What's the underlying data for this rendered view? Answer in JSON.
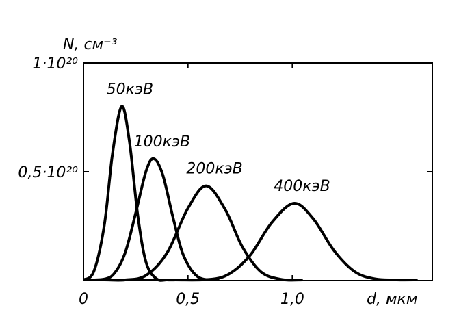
{
  "chart_data": {
    "type": "line",
    "y_label": "N, см⁻³",
    "x_label": "d, мкм",
    "xlim": [
      0,
      1.67
    ],
    "ylim": [
      0,
      1e+20
    ],
    "xticks": [
      0,
      {
        "value": 0.5,
        "label": "0,5"
      },
      {
        "value": 1.0,
        "label": "1,0"
      }
    ],
    "yticks": [
      {
        "value": 5e+19,
        "label": "0,5·10²⁰"
      },
      {
        "value": 1e+20,
        "label": "1·10²⁰"
      }
    ],
    "color": "#000000",
    "series": [
      {
        "name": "50кэВ",
        "x": [
          0,
          0.05,
          0.1,
          0.14,
          0.183,
          0.22,
          0.26,
          0.3,
          0.35,
          0.4,
          0.45
        ],
        "values": [
          0,
          4.3e+18,
          2.56e+19,
          5.9e+19,
          8e+19,
          6.4e+19,
          3e+19,
          8.3e+18,
          8e+17,
          0,
          0
        ]
      },
      {
        "name": "100кэВ",
        "x": [
          0,
          0.1,
          0.15,
          0.2,
          0.25,
          0.3,
          0.337,
          0.38,
          0.43,
          0.48,
          0.55,
          0.65
        ],
        "values": [
          0,
          7e+17,
          3.6e+18,
          1.29e+19,
          3.1e+19,
          5.04e+19,
          5.6e+19,
          4.85e+19,
          2.85e+19,
          1.13e+19,
          1.6e+18,
          0
        ]
      },
      {
        "name": "200кэВ",
        "x": [
          0,
          0.1,
          0.2,
          0.3,
          0.4,
          0.5,
          0.588,
          0.68,
          0.76,
          0.85,
          0.95,
          1.05
        ],
        "values": [
          0,
          0,
          2e+17,
          2.4e+18,
          1.27e+19,
          3.32e+19,
          4.35e+19,
          3.24e+19,
          1.56e+19,
          4e+18,
          5e+17,
          0
        ]
      },
      {
        "name": "400кэВ",
        "x": [
          0,
          0.4,
          0.6,
          0.7,
          0.8,
          0.9,
          1.007,
          1.1,
          1.2,
          1.3,
          1.4,
          1.5,
          1.6
        ],
        "values": [
          0,
          0,
          5e+17,
          3.2e+18,
          1.19e+19,
          2.65e+19,
          3.55e+19,
          2.84e+19,
          1.37e+19,
          4e+18,
          7e+17,
          0,
          0
        ]
      }
    ]
  }
}
